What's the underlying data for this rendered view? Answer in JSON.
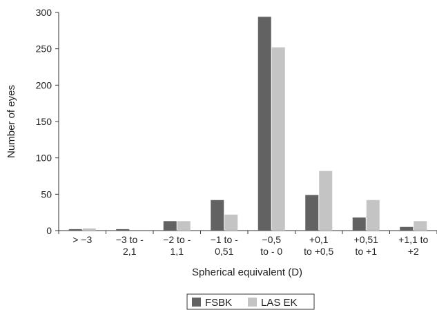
{
  "chart_data": {
    "type": "bar",
    "xlabel": "Spherical equivalent (D)",
    "ylabel": "Number of eyes",
    "ylim": [
      0,
      300
    ],
    "yticks": [
      0,
      50,
      100,
      150,
      200,
      250,
      300
    ],
    "grid": false,
    "legend_position": "bottom-center",
    "categories": [
      [
        "> −3"
      ],
      [
        "−3 to -",
        "2,1"
      ],
      [
        "−2 to -",
        "1,1"
      ],
      [
        "−1 to -",
        "0,51"
      ],
      [
        "−0,5",
        "to - 0"
      ],
      [
        "+0,1",
        "to +0,5"
      ],
      [
        "+0,51",
        "to +1"
      ],
      [
        "+1,1 to",
        "+2"
      ]
    ],
    "series": [
      {
        "name": "FSBK",
        "color": "#626262",
        "values": [
          2,
          2,
          13,
          42,
          294,
          49,
          18,
          5
        ]
      },
      {
        "name": "LAS EK",
        "color": "#c4c4c4",
        "values": [
          3,
          0,
          13,
          22,
          252,
          82,
          42,
          13
        ]
      }
    ]
  }
}
